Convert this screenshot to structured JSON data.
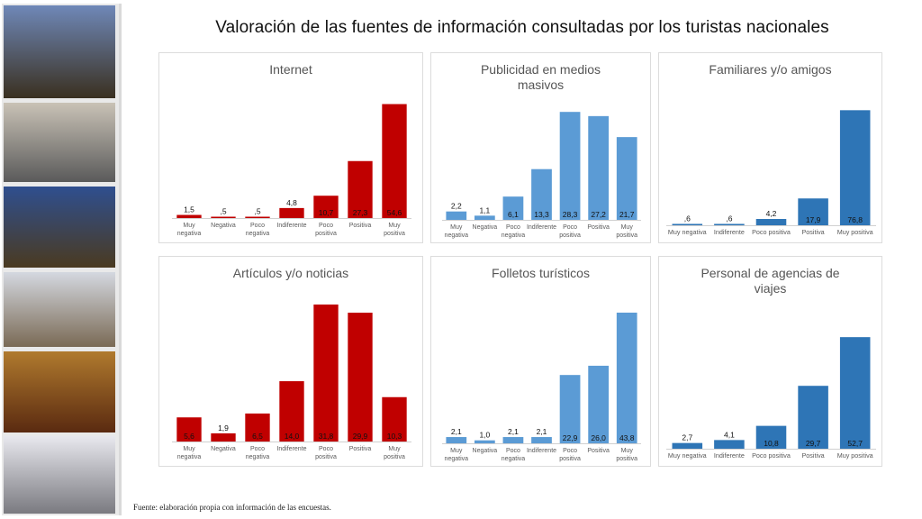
{
  "title": "Valoración de las fuentes de información consultadas por los turistas nacionales",
  "footnote": {
    "lead": "Fuente:",
    "text": " elaboración propia con información de las encuestas."
  },
  "colors": {
    "red": "#c00000",
    "blue": "#5b9bd5",
    "darkblue": "#2e75b6"
  },
  "photos": [
    {
      "name": "city-pool-photo",
      "color_top": "#6f88b8",
      "color_bottom": "#3a3020"
    },
    {
      "name": "street-crowd-photo",
      "color_top": "#c9c2b6",
      "color_bottom": "#5a5a5a"
    },
    {
      "name": "terrace-night-photo",
      "color_top": "#2f4f8f",
      "color_bottom": "#4a3a20"
    },
    {
      "name": "church-plaza-photo",
      "color_top": "#d4d8e0",
      "color_bottom": "#7a6a55"
    },
    {
      "name": "hotel-room-photo",
      "color_top": "#b07a2e",
      "color_bottom": "#5a2a10"
    },
    {
      "name": "mall-crowd-photo",
      "color_top": "#e8e8ee",
      "color_bottom": "#7a7a80"
    }
  ],
  "chart_data": [
    {
      "type": "bar",
      "title": "Internet",
      "color": "#c00000",
      "categories": [
        "Muy negativa",
        "Negativa",
        "Poco negativa",
        "Indiferente",
        "Poco positiva",
        "Positiva",
        "Muy positiva"
      ],
      "values": [
        1.5,
        0.5,
        0.5,
        4.8,
        10.7,
        27.3,
        54.6
      ],
      "labels": [
        "1,5",
        ",5",
        ",5",
        "4,8",
        "10,7",
        "27,3",
        "54,6"
      ],
      "ylim": [
        0,
        60
      ]
    },
    {
      "type": "bar",
      "title": "Publicidad en medios masivos",
      "color": "#5b9bd5",
      "categories": [
        "Muy negativa",
        "Negativa",
        "Poco negativa",
        "Indiferente",
        "Poco positiva",
        "Positiva",
        "Muy positiva"
      ],
      "values": [
        2.2,
        1.1,
        6.1,
        13.3,
        28.3,
        27.2,
        21.7
      ],
      "labels": [
        "2,2",
        "1,1",
        "6,1",
        "13,3",
        "28,3",
        "27,2",
        "21,7"
      ],
      "ylim": [
        0,
        30
      ]
    },
    {
      "type": "bar",
      "title": "Familiares y/o amigos",
      "color": "#2e75b6",
      "categories": [
        "Muy negativa",
        "Indiferente",
        "Poco positiva",
        "Positiva",
        "Muy positiva"
      ],
      "values": [
        0.6,
        0.6,
        4.2,
        17.9,
        76.8
      ],
      "labels": [
        ",6",
        ",6",
        "4,2",
        "17,9",
        "76,8"
      ],
      "ylim": [
        0,
        80
      ]
    },
    {
      "type": "bar",
      "title": "Artículos y/o noticias",
      "color": "#c00000",
      "categories": [
        "Muy negativa",
        "Negativa",
        "Poco negativa",
        "Indiferente",
        "Poco positiva",
        "Positiva",
        "Muy positiva"
      ],
      "values": [
        5.6,
        1.9,
        6.5,
        14.0,
        31.8,
        29.9,
        10.3
      ],
      "labels": [
        "5,6",
        "1,9",
        "6,5",
        "14,0",
        "31,8",
        "29,9",
        "10,3"
      ],
      "ylim": [
        0,
        32
      ]
    },
    {
      "type": "bar",
      "title": "Folletos turísticos",
      "color": "#5b9bd5",
      "categories": [
        "Muy negativa",
        "Negativa",
        "Poco negativa",
        "Indiferente",
        "Poco positiva",
        "Positiva",
        "Muy positiva"
      ],
      "values": [
        2.1,
        1.0,
        2.1,
        2.1,
        22.9,
        26.0,
        43.8
      ],
      "labels": [
        "2,1",
        "1,0",
        "2,1",
        "2,1",
        "22,9",
        "26,0",
        "43,8"
      ],
      "ylim": [
        0,
        45
      ]
    },
    {
      "type": "bar",
      "title": "Personal de agencias de viajes",
      "color": "#2e75b6",
      "categories": [
        "Muy negativa",
        "Indiferente",
        "Poco positiva",
        "Positiva",
        "Muy positiva"
      ],
      "values": [
        2.7,
        4.1,
        10.8,
        29.7,
        52.7
      ],
      "labels": [
        "2,7",
        "4,1",
        "10,8",
        "29,7",
        "52,7"
      ],
      "ylim": [
        0,
        60
      ]
    }
  ]
}
